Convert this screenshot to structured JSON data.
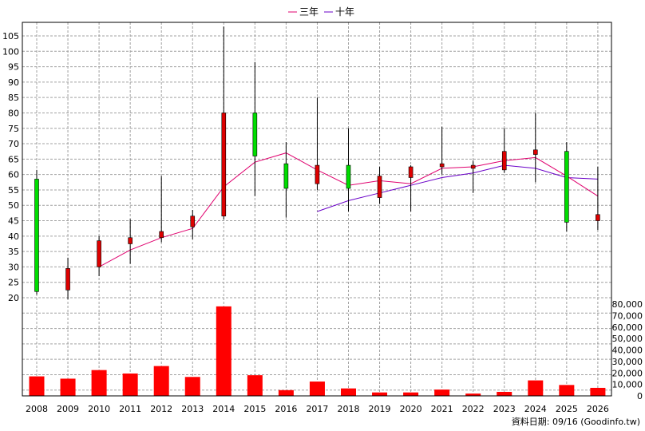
{
  "chart_data": {
    "type": "candlestick",
    "years": [
      "2008",
      "2009",
      "2010",
      "2011",
      "2012",
      "2013",
      "2014",
      "2015",
      "2016",
      "2017",
      "2018",
      "2019",
      "2020",
      "2021",
      "2022",
      "2023",
      "2024",
      "2025",
      "2026"
    ],
    "candles": [
      {
        "open": 22,
        "close": 58.5,
        "high": 61.5,
        "low": 21
      },
      {
        "open": 29.5,
        "close": 22.5,
        "high": 33,
        "low": 19.5
      },
      {
        "open": 38.5,
        "close": 30,
        "high": 40,
        "low": 27
      },
      {
        "open": 39.5,
        "close": 37.5,
        "high": 45.5,
        "low": 31
      },
      {
        "open": 41.5,
        "close": 39.5,
        "high": 59.5,
        "low": 38
      },
      {
        "open": 46.5,
        "close": 43,
        "high": 48.5,
        "low": 39
      },
      {
        "open": 80,
        "close": 46.5,
        "high": 108,
        "low": 45.5
      },
      {
        "open": 66,
        "close": 80,
        "high": 96.5,
        "low": 53
      },
      {
        "open": 55.5,
        "close": 63.5,
        "high": 70.5,
        "low": 46
      },
      {
        "open": 63,
        "close": 57,
        "high": 85,
        "low": 55
      },
      {
        "open": 55.5,
        "close": 63,
        "high": 75,
        "low": 48
      },
      {
        "open": 59.5,
        "close": 52.5,
        "high": 62.5,
        "low": 50.5
      },
      {
        "open": 62.5,
        "close": 59,
        "high": 63,
        "low": 48
      },
      {
        "open": 63.5,
        "close": 62.5,
        "high": 75.5,
        "low": 60
      },
      {
        "open": 63,
        "close": 62,
        "high": 64.5,
        "low": 54
      },
      {
        "open": 67.5,
        "close": 61.5,
        "high": 75,
        "low": 60.5
      },
      {
        "open": 68,
        "close": 66.5,
        "high": 80,
        "low": 57.5
      },
      {
        "open": 44.5,
        "close": 67.5,
        "high": 70.5,
        "low": 41.5
      },
      {
        "open": 47,
        "close": 45,
        "high": 62.5,
        "low": 42
      }
    ],
    "ma3": [
      null,
      null,
      30,
      35.5,
      39.5,
      42.5,
      56,
      64,
      67,
      61.5,
      56.5,
      58,
      57,
      62,
      62.5,
      64.5,
      65.5,
      59.5,
      53
    ],
    "ma10": [
      null,
      null,
      null,
      null,
      null,
      null,
      null,
      null,
      null,
      48,
      51.5,
      54,
      56.5,
      59,
      60.5,
      63,
      62,
      59,
      58.5
    ],
    "volume": [
      17000,
      15000,
      22500,
      19500,
      26000,
      16500,
      78000,
      18000,
      5000,
      12500,
      6500,
      3000,
      3000,
      5500,
      2000,
      3500,
      13500,
      9500,
      7000
    ],
    "price_axis": {
      "min": 20,
      "max": 105,
      "step": 5
    },
    "volume_axis": {
      "min": 0,
      "max": 80000,
      "step": 10000
    },
    "legend": [
      {
        "name": "三年",
        "color": "#e0006e"
      },
      {
        "name": "十年",
        "color": "#6a00c8"
      }
    ],
    "colors": {
      "up": "#00dd00",
      "down": "#dd0000",
      "volume": "#ff0000",
      "grid": "#a0a0a0"
    },
    "footer": "資料日期: 09/16  (Goodinfo.tw)"
  }
}
